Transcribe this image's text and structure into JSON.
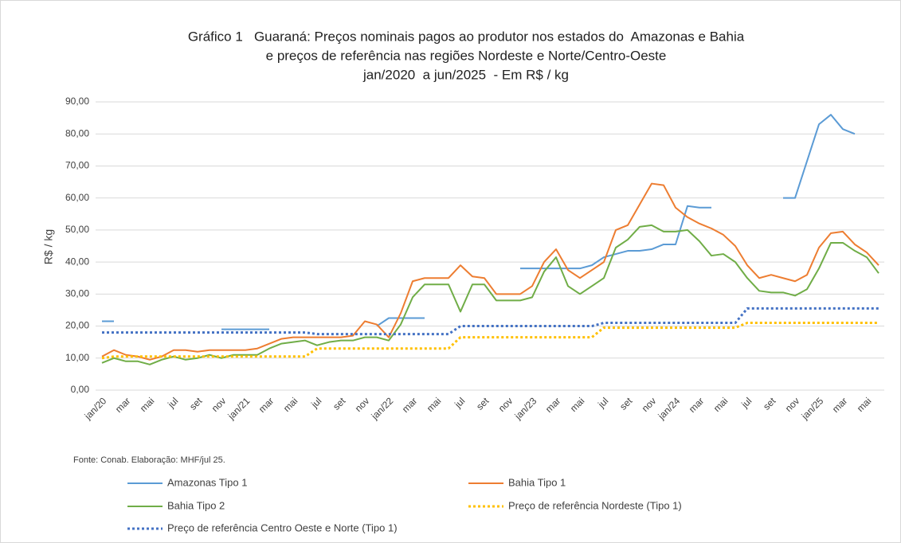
{
  "chart_data": {
    "type": "line",
    "title": [
      "Gráfico 1   Guaraná: Preços nominais pagos ao produtor nos estados do  Amazonas e Bahia",
      "e preços de referência nas regiões Nordeste e Norte/Centro-Oeste",
      "jan/2020  a jun/2025  - Em R$ / kg"
    ],
    "y_label": "R$ / kg",
    "source": "Fonte: Conab. Elaboração: MHF/jul 25.",
    "categories": [
      "jan/20",
      null,
      "mar",
      null,
      "mai",
      null,
      "jul",
      null,
      "set",
      null,
      "nov",
      null,
      "jan/21",
      null,
      "mar",
      null,
      "mai",
      null,
      "jul",
      null,
      "set",
      null,
      "nov",
      null,
      "jan/22",
      null,
      "mar",
      null,
      "mai",
      null,
      "jul",
      null,
      "set",
      null,
      "nov",
      null,
      "jan/23",
      null,
      "mar",
      null,
      "mai",
      null,
      "jul",
      null,
      "set",
      null,
      "nov",
      null,
      "jan/24",
      null,
      "mar",
      null,
      "mai",
      null,
      "jul",
      null,
      "set",
      null,
      "nov",
      null,
      "jan/25",
      null,
      "mar",
      null,
      "mai",
      null
    ],
    "ylim": [
      0,
      90
    ],
    "yticks": [
      {
        "value": 0,
        "label": "0,00"
      },
      {
        "value": 10,
        "label": "10,00"
      },
      {
        "value": 20,
        "label": "20,00"
      },
      {
        "value": 30,
        "label": "30,00"
      },
      {
        "value": 40,
        "label": "40,00"
      },
      {
        "value": 50,
        "label": "50,00"
      },
      {
        "value": 60,
        "label": "60,00"
      },
      {
        "value": 70,
        "label": "70,00"
      },
      {
        "value": 80,
        "label": "80,00"
      },
      {
        "value": 90,
        "label": "90,00"
      }
    ],
    "grid": true,
    "series": [
      {
        "name": "Amazonas Tipo 1",
        "color": "#5b9bd5",
        "style": "solid",
        "values": [
          21.5,
          21.5,
          null,
          null,
          null,
          null,
          null,
          null,
          null,
          null,
          19,
          19,
          19,
          19,
          19,
          null,
          null,
          null,
          null,
          null,
          null,
          null,
          null,
          20,
          22.5,
          22.5,
          22.5,
          22.5,
          null,
          null,
          null,
          null,
          null,
          null,
          null,
          38,
          38,
          38,
          38,
          38,
          38,
          39,
          41.5,
          42.5,
          43.5,
          43.5,
          44,
          45.5,
          45.5,
          57.5,
          57,
          57,
          null,
          null,
          null,
          null,
          null,
          60,
          60,
          71.5,
          83,
          86,
          81.5,
          80,
          null,
          null
        ]
      },
      {
        "name": "Bahia Tipo 1",
        "color": "#ed7d31",
        "style": "solid",
        "values": [
          10.5,
          12.5,
          11,
          10.5,
          9.5,
          10.5,
          12.5,
          12.5,
          12,
          12.5,
          12.5,
          12.5,
          12.5,
          13,
          14.5,
          16,
          16.5,
          16.5,
          16.5,
          16.5,
          16.5,
          17,
          21.5,
          20.5,
          16.5,
          24,
          34,
          35,
          35,
          35,
          39,
          35.5,
          35,
          30,
          30,
          30,
          32.5,
          40,
          44,
          37.5,
          35,
          37.5,
          40,
          50,
          51.5,
          58,
          64.5,
          64,
          57,
          54,
          52,
          50.5,
          48.5,
          45,
          39,
          35,
          36,
          35,
          34,
          36,
          44.5,
          49,
          49.5,
          45.5,
          43,
          39
        ]
      },
      {
        "name": "Bahia Tipo 2",
        "color": "#70ad47",
        "style": "solid",
        "values": [
          8.5,
          10,
          9,
          9,
          8,
          9.5,
          10.5,
          9.5,
          10,
          11,
          10,
          11,
          11,
          11,
          13,
          14.5,
          15,
          15.5,
          14,
          15,
          15.5,
          15.5,
          16.5,
          16.5,
          15.5,
          20.5,
          29,
          33,
          33,
          33,
          24.5,
          33,
          33,
          28,
          28,
          28,
          29,
          37,
          41.5,
          32.5,
          30,
          32.5,
          35,
          44.5,
          47,
          51,
          51.5,
          49.5,
          49.5,
          50,
          46.5,
          42,
          42.5,
          40,
          35,
          31,
          30.5,
          30.5,
          29.5,
          31.5,
          38,
          46,
          46,
          43.5,
          41.5,
          36.5
        ]
      },
      {
        "name": "Preço de referência Nordeste (Tipo 1)",
        "color": "#ffc000",
        "style": "dotted",
        "values": [
          10,
          10.5,
          10.5,
          10.5,
          10.5,
          10.5,
          10.5,
          10.5,
          10.5,
          10.5,
          10.5,
          10.5,
          10.5,
          10.5,
          10.5,
          10.5,
          10.5,
          10.5,
          13,
          13,
          13,
          13,
          13,
          13,
          13,
          13,
          13,
          13,
          13,
          13,
          16.5,
          16.5,
          16.5,
          16.5,
          16.5,
          16.5,
          16.5,
          16.5,
          16.5,
          16.5,
          16.5,
          16.5,
          19.5,
          19.5,
          19.5,
          19.5,
          19.5,
          19.5,
          19.5,
          19.5,
          19.5,
          19.5,
          19.5,
          19.5,
          21,
          21,
          21,
          21,
          21,
          21,
          21,
          21,
          21,
          21,
          21,
          21
        ]
      },
      {
        "name": "Preço de referência Centro Oeste e Norte (Tipo 1)",
        "color": "#4472c4",
        "style": "dotted",
        "values": [
          18,
          18,
          18,
          18,
          18,
          18,
          18,
          18,
          18,
          18,
          18,
          18,
          18,
          18,
          18,
          18,
          18,
          18,
          17.5,
          17.5,
          17.5,
          17.5,
          17.5,
          17.5,
          17.5,
          17.5,
          17.5,
          17.5,
          17.5,
          17.5,
          20,
          20,
          20,
          20,
          20,
          20,
          20,
          20,
          20,
          20,
          20,
          20,
          21,
          21,
          21,
          21,
          21,
          21,
          21,
          21,
          21,
          21,
          21,
          21,
          25.5,
          25.5,
          25.5,
          25.5,
          25.5,
          25.5,
          25.5,
          25.5,
          25.5,
          25.5,
          25.5,
          25.5
        ]
      }
    ]
  }
}
